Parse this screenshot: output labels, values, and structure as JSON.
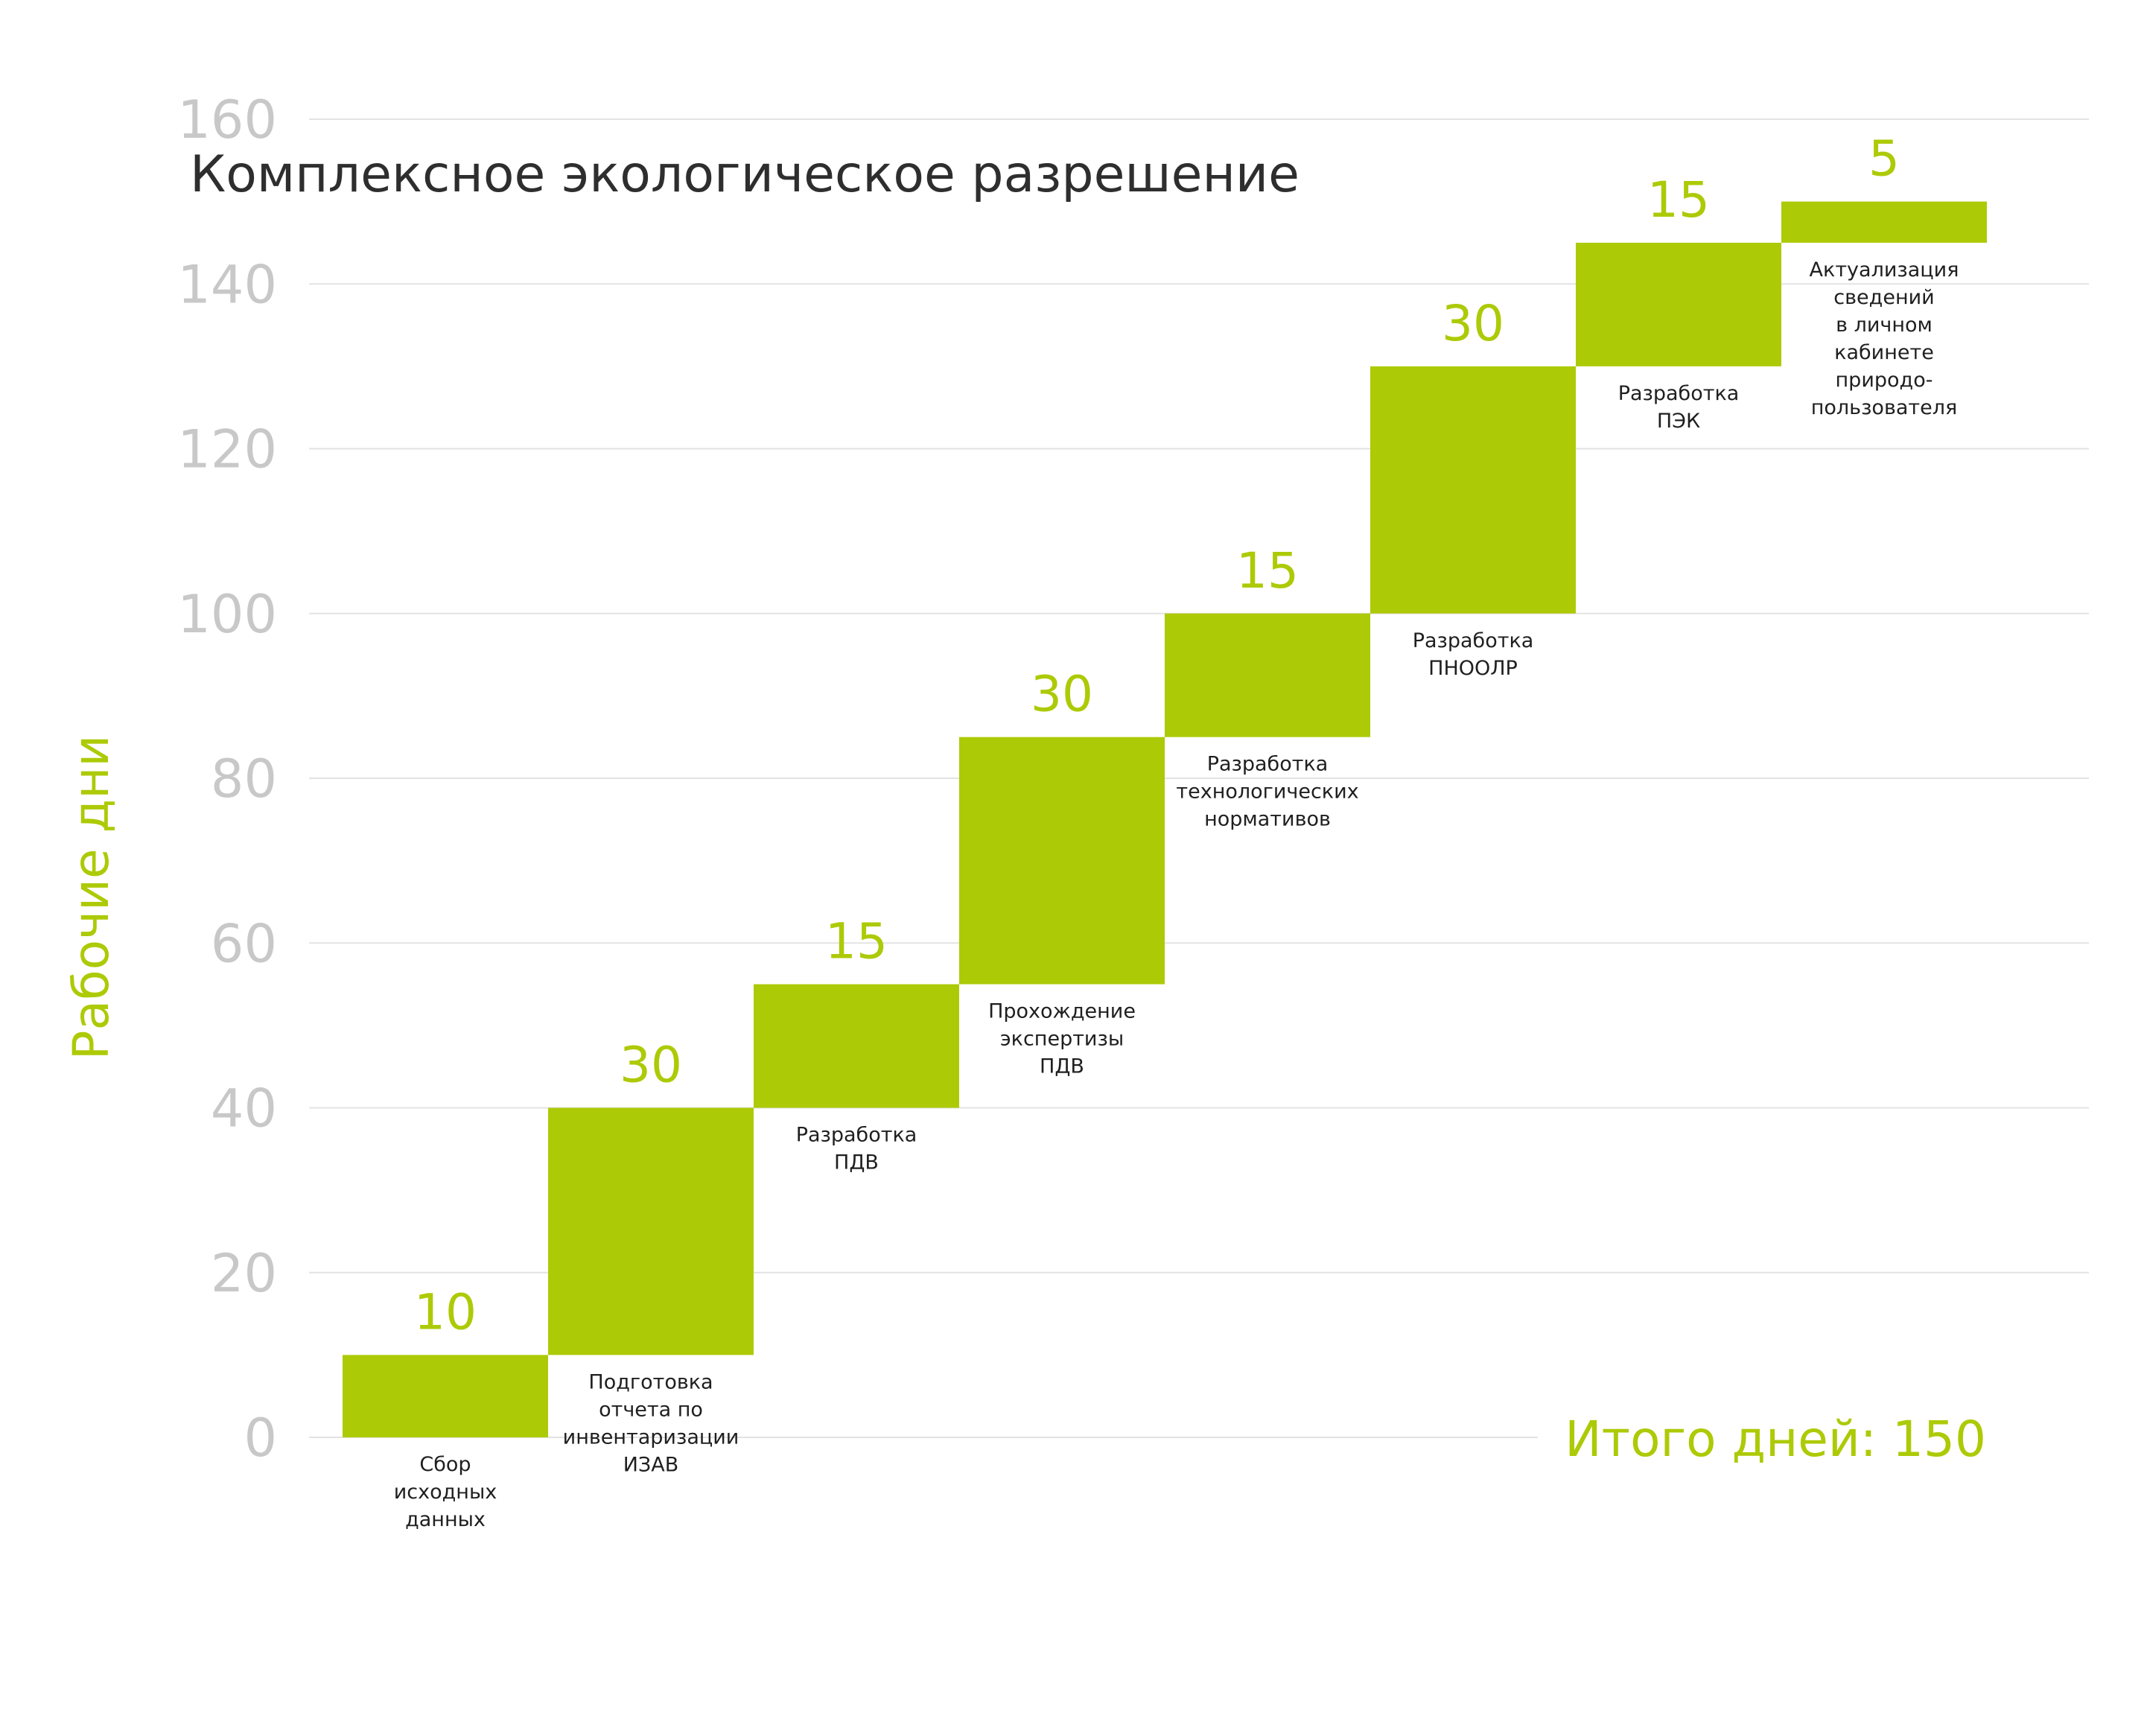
{
  "chart_data": {
    "type": "bar",
    "title": "Комплексное экологическое разрешение",
    "ylabel": "Рабочие дни",
    "ylim": [
      0,
      160
    ],
    "yticks": [
      0,
      20,
      40,
      60,
      80,
      100,
      120,
      140,
      160
    ],
    "grid": true,
    "accent_color": "#adca06",
    "grid_color": "#e3e3e3",
    "tick_color": "#c8c8c8",
    "categories": [
      [
        "Сбор",
        "исходных",
        "данных"
      ],
      [
        "Подготовка",
        "отчета по",
        "инвентаризации",
        "ИЗАВ"
      ],
      [
        "Разработка",
        "ПДВ"
      ],
      [
        "Прохождение",
        "экспертизы",
        "ПДВ"
      ],
      [
        "Разработка",
        "технологических",
        "нормативов"
      ],
      [
        "Разработка",
        "ПНООЛР"
      ],
      [
        "Разработка",
        "ПЭК"
      ],
      [
        "Актуализация",
        "сведений",
        "в личном",
        "кабинете",
        "природо-",
        "пользователя"
      ]
    ],
    "values": [
      10,
      30,
      15,
      30,
      15,
      30,
      15,
      5
    ],
    "total_label": "Итого дней: 150"
  }
}
